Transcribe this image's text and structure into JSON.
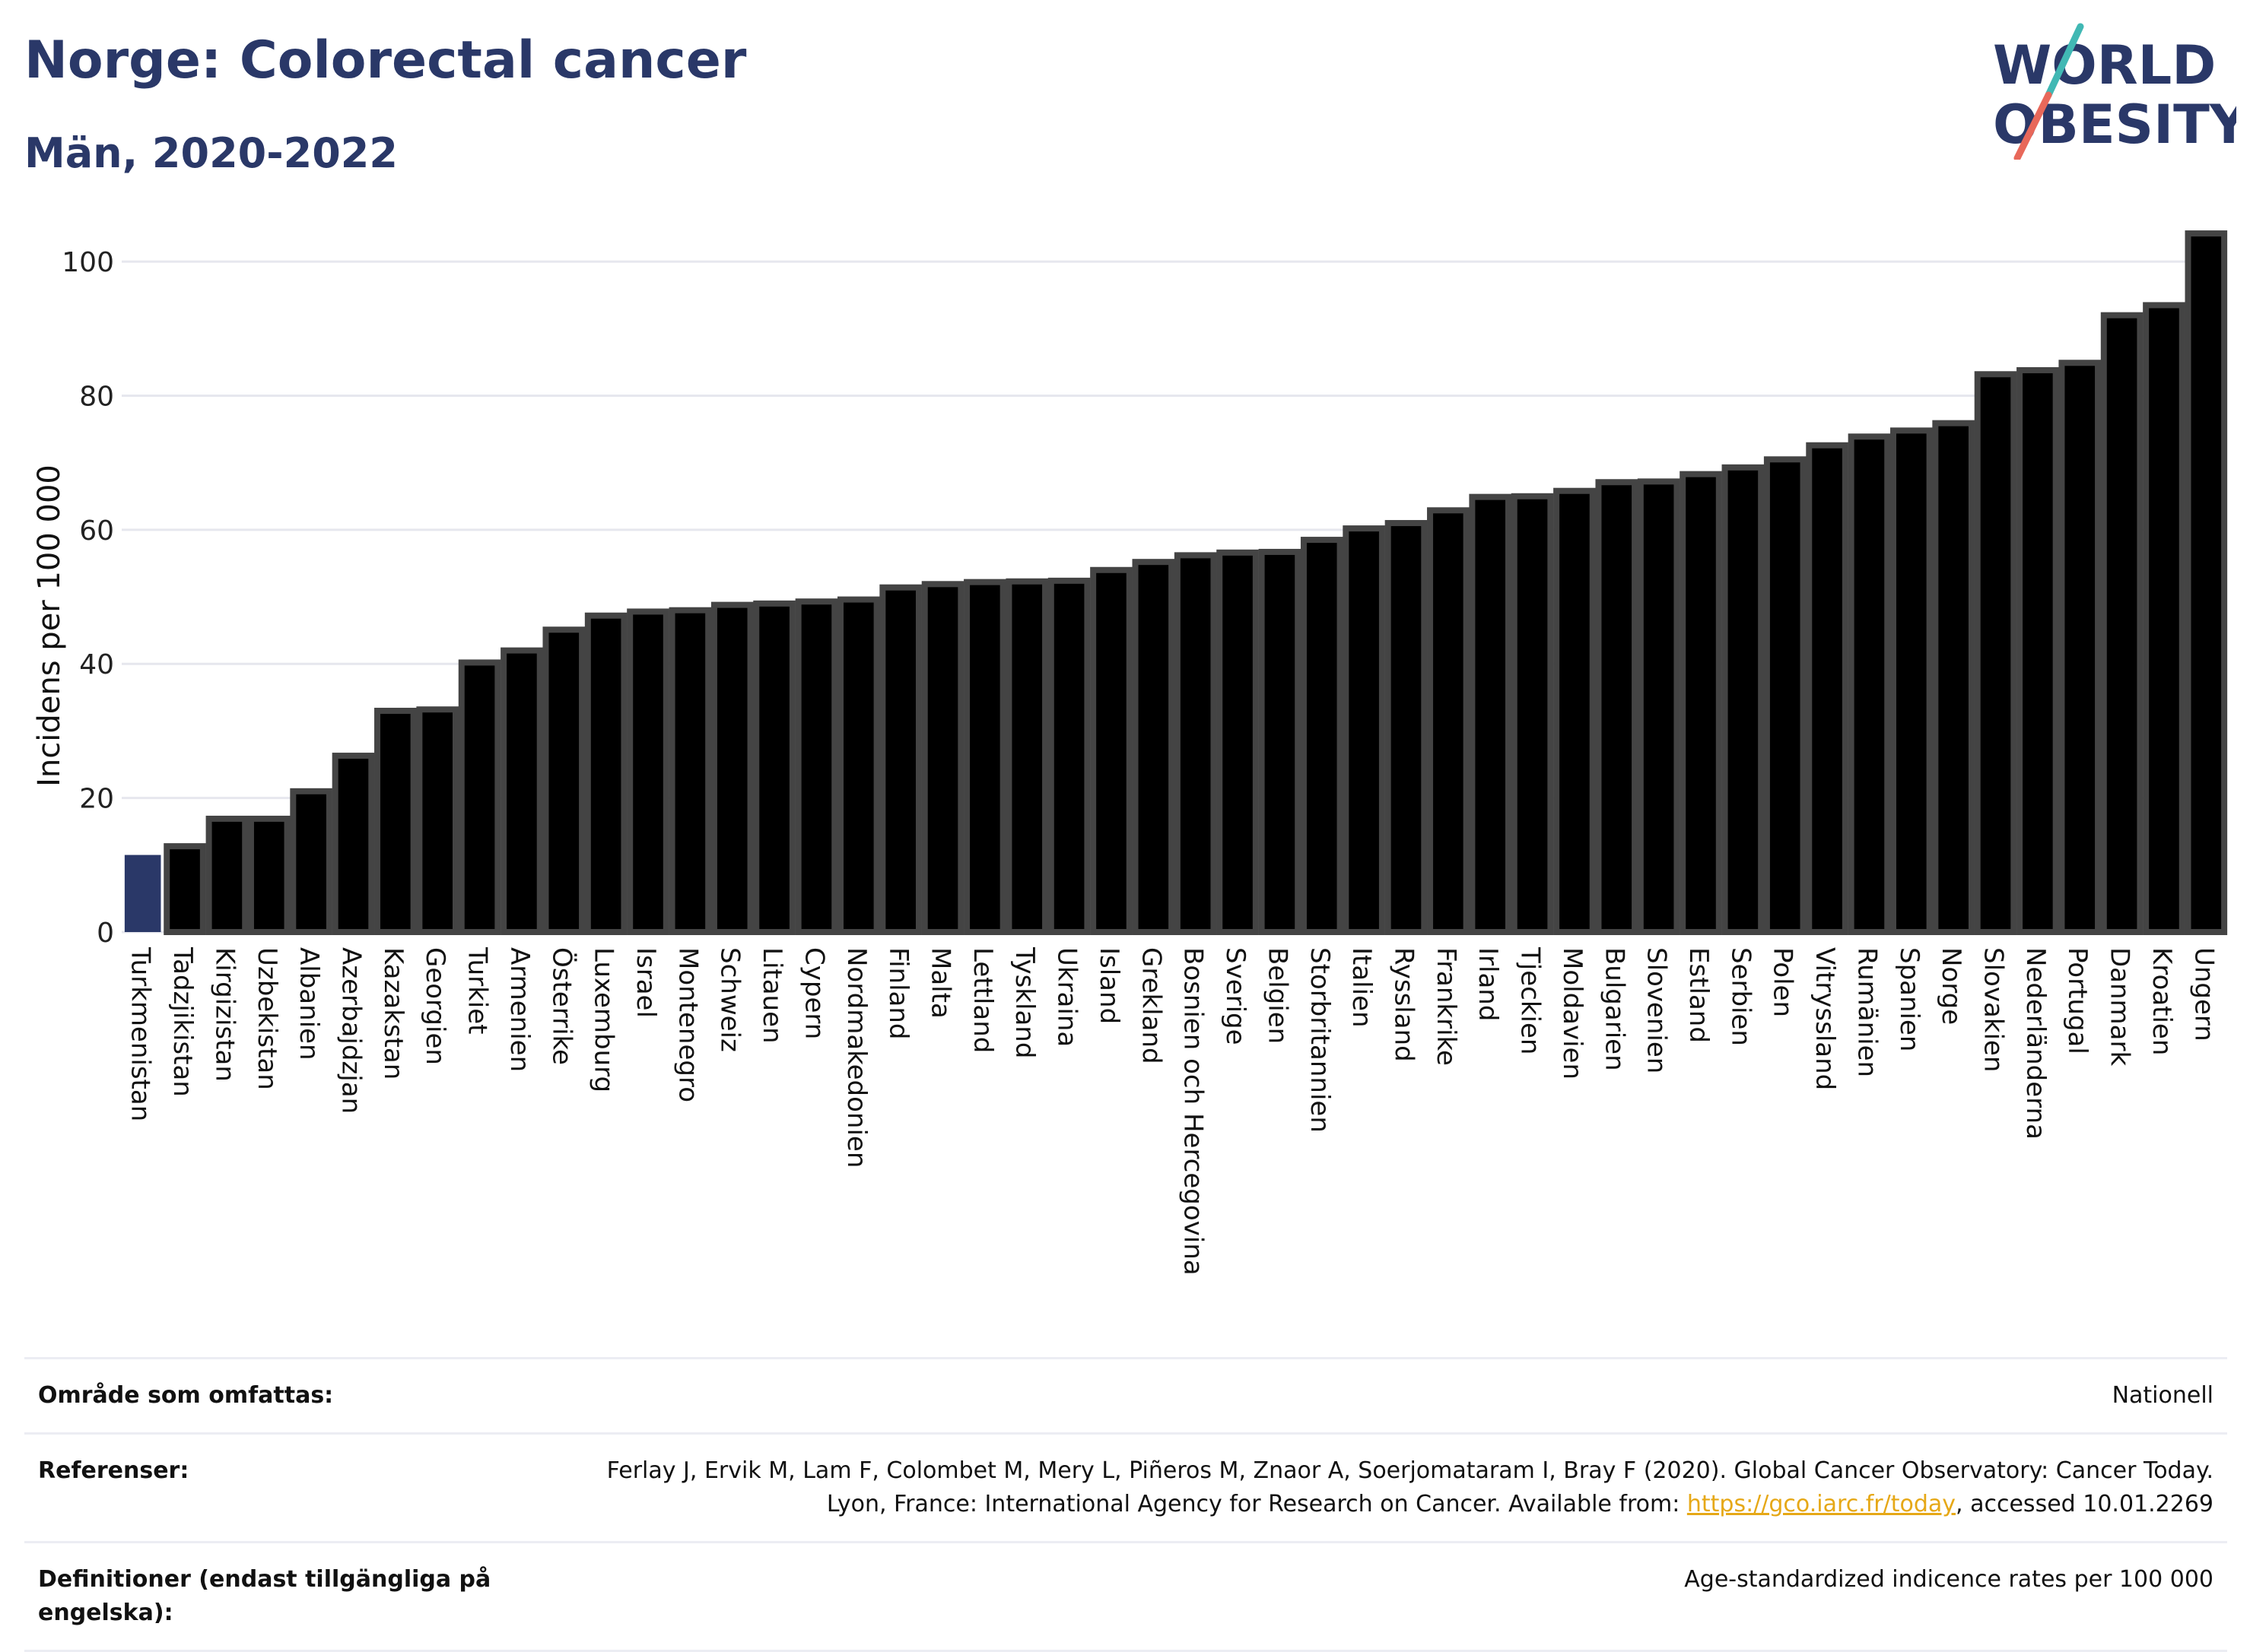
{
  "header": {
    "title": "Norge: Colorectal cancer",
    "subtitle": "Män, 2020-2022"
  },
  "logo": {
    "line1": "WORLD",
    "line2": "OBESITY",
    "accent_colors": [
      "#41b8b4",
      "#e8685a"
    ]
  },
  "colors": {
    "bar": "#000000",
    "bar_border": "#444444",
    "highlight": "#2a3868",
    "grid": "#e6e7ee",
    "title": "#2a3868"
  },
  "chart_data": {
    "type": "bar",
    "title": "Norge: Colorectal cancer",
    "subtitle": "Män, 2020-2022",
    "xlabel": "",
    "ylabel": "Incidens per 100 000",
    "ylim": [
      0,
      105
    ],
    "yticks": [
      0,
      20,
      40,
      60,
      80,
      100
    ],
    "grid": true,
    "highlight_category": "Turkmenistan",
    "categories": [
      "Turkmenistan",
      "Tadzjikistan",
      "Kirgizistan",
      "Uzbekistan",
      "Albanien",
      "Azerbajdzjan",
      "Kazakstan",
      "Georgien",
      "Turkiet",
      "Armenien",
      "Österrike",
      "Luxemburg",
      "Israel",
      "Montenegro",
      "Schweiz",
      "Litauen",
      "Cypern",
      "Nordmakedonien",
      "Finland",
      "Malta",
      "Lettland",
      "Tyskland",
      "Ukraina",
      "Island",
      "Grekland",
      "Bosnien och Hercegovina",
      "Sverige",
      "Belgien",
      "Storbritannien",
      "Italien",
      "Ryssland",
      "Frankrike",
      "Irland",
      "Tjeckien",
      "Moldavien",
      "Bulgarien",
      "Slovenien",
      "Estland",
      "Serbien",
      "Polen",
      "Vitryssland",
      "Rumänien",
      "Spanien",
      "Norge",
      "Slovakien",
      "Nederländerna",
      "Portugal",
      "Danmark",
      "Kroatien",
      "Ungern"
    ],
    "values": [
      11.5,
      12.8,
      16.9,
      16.9,
      21.0,
      26.3,
      33.0,
      33.2,
      40.2,
      42.0,
      45.1,
      47.2,
      47.8,
      48.0,
      48.8,
      49.0,
      49.3,
      49.6,
      51.4,
      51.9,
      52.2,
      52.3,
      52.4,
      54.0,
      55.2,
      56.2,
      56.6,
      56.7,
      58.5,
      60.2,
      61.0,
      62.9,
      64.9,
      65.0,
      65.8,
      67.1,
      67.2,
      68.3,
      69.3,
      70.5,
      72.6,
      73.9,
      74.8,
      75.9,
      83.2,
      83.8,
      84.9,
      92.0,
      93.5,
      104.2
    ]
  },
  "meta": {
    "area_label": "Område som omfattas:",
    "area_value": "Nationell",
    "refs_label": "Referenser:",
    "refs_before": "Ferlay J, Ervik M, Lam F, Colombet M, Mery L, Piñeros M, Znaor A, Soerjomataram I, Bray F (2020). Global Cancer Observatory: Cancer Today. Lyon, France: International Agency for Research on Cancer. Available from: ",
    "refs_link": "https://gco.iarc.fr/today",
    "refs_after": ", accessed 10.01.2269",
    "defs_label": "Definitioner (endast tillgängliga på engelska):",
    "defs_value": "Age-standardized indicence rates per 100 000"
  }
}
